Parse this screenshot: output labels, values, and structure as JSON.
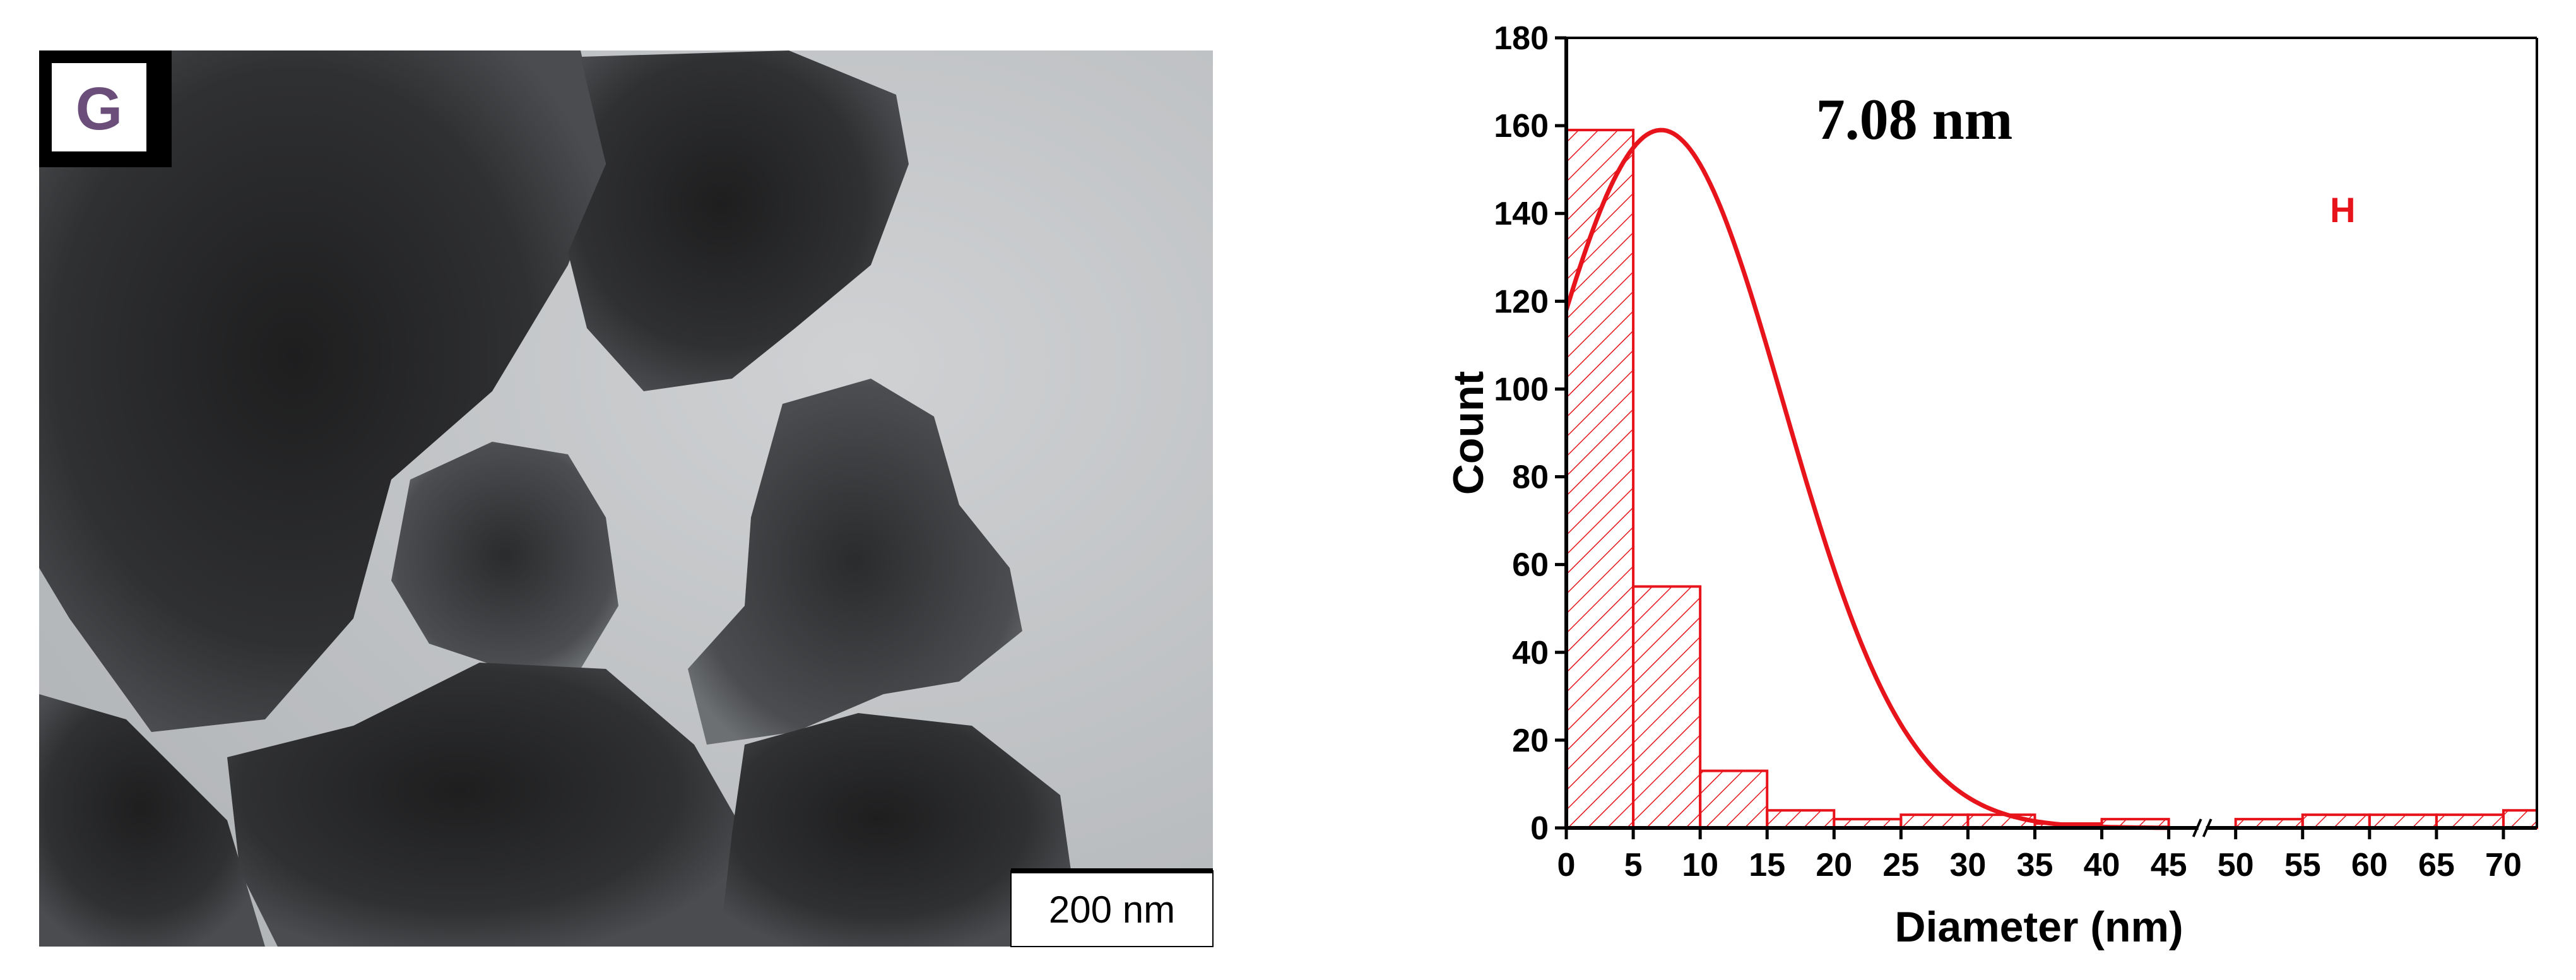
{
  "figure": {
    "panel_g_label": "G",
    "scale_bar_label": "200 nm",
    "panel_h_label": "H",
    "colors": {
      "bar": "#e8141c",
      "fit": "#e8141c",
      "axis": "#000000",
      "panel_h": "#e8141c"
    }
  },
  "chart_data": {
    "type": "bar",
    "title": "",
    "annotation": "7.08 nm",
    "xlabel": "Diameter (nm)",
    "ylabel": "Count",
    "xlim": [
      0,
      72.5
    ],
    "ylim": [
      0,
      180
    ],
    "axis_break_at": 47.5,
    "x_ticks": [
      0,
      5,
      10,
      15,
      20,
      25,
      30,
      35,
      40,
      45,
      50,
      55,
      60,
      65,
      70
    ],
    "y_ticks": [
      0,
      20,
      40,
      60,
      80,
      100,
      120,
      140,
      160,
      180
    ],
    "bin_width": 5,
    "bins": [
      {
        "start": 0,
        "end": 5,
        "count": 159
      },
      {
        "start": 5,
        "end": 10,
        "count": 55
      },
      {
        "start": 10,
        "end": 15,
        "count": 13
      },
      {
        "start": 15,
        "end": 20,
        "count": 4
      },
      {
        "start": 20,
        "end": 25,
        "count": 2
      },
      {
        "start": 25,
        "end": 30,
        "count": 3
      },
      {
        "start": 30,
        "end": 35,
        "count": 3
      },
      {
        "start": 35,
        "end": 40,
        "count": 1
      },
      {
        "start": 40,
        "end": 45,
        "count": 2
      },
      {
        "start": 50,
        "end": 55,
        "count": 2
      },
      {
        "start": 55,
        "end": 60,
        "count": 3
      },
      {
        "start": 60,
        "end": 65,
        "count": 3
      },
      {
        "start": 65,
        "end": 70,
        "count": 3
      },
      {
        "start": 70,
        "end": 72.5,
        "count": 4
      }
    ],
    "fit": {
      "type": "gaussian",
      "center": 7.08,
      "peak": 159
    },
    "grid": false,
    "legend": "none"
  }
}
